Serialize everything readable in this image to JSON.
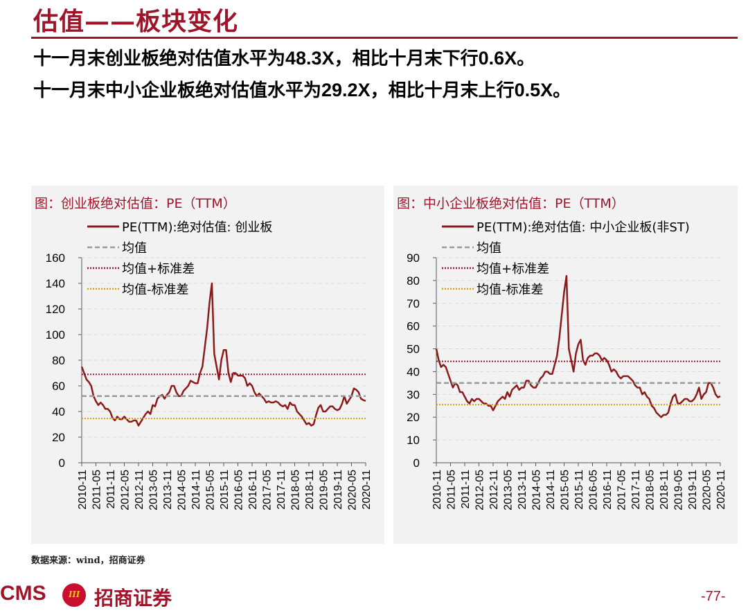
{
  "header": {
    "title": "估值——板块变化",
    "lines": [
      [
        "十一月末创业板绝对估值水平为",
        "48.3X",
        "，相比十月末下行",
        "0.6X",
        "。"
      ],
      [
        "十一月末中小企业板绝对估值水平为",
        "29.2X",
        "，相比十月末上行",
        "0.5X",
        "。"
      ]
    ]
  },
  "chart_data": [
    {
      "type": "line",
      "title": "图：创业板绝对估值：PE（TTM）",
      "x": [
        "2010-11",
        "2010-12",
        "2011-01",
        "2011-02",
        "2011-03",
        "2011-04",
        "2011-05",
        "2011-06",
        "2011-07",
        "2011-08",
        "2011-09",
        "2011-10",
        "2011-11",
        "2011-12",
        "2012-01",
        "2012-02",
        "2012-03",
        "2012-04",
        "2012-05",
        "2012-06",
        "2012-07",
        "2012-08",
        "2012-09",
        "2012-10",
        "2012-11",
        "2012-12",
        "2013-01",
        "2013-02",
        "2013-03",
        "2013-04",
        "2013-05",
        "2013-06",
        "2013-07",
        "2013-08",
        "2013-09",
        "2013-10",
        "2013-11",
        "2013-12",
        "2014-01",
        "2014-02",
        "2014-03",
        "2014-04",
        "2014-05",
        "2014-06",
        "2014-07",
        "2014-08",
        "2014-09",
        "2014-10",
        "2014-11",
        "2014-12",
        "2015-01",
        "2015-02",
        "2015-03",
        "2015-04",
        "2015-05",
        "2015-06",
        "2015-07",
        "2015-08",
        "2015-09",
        "2015-10",
        "2015-11",
        "2015-12",
        "2016-01",
        "2016-02",
        "2016-03",
        "2016-04",
        "2016-05",
        "2016-06",
        "2016-07",
        "2016-08",
        "2016-09",
        "2016-10",
        "2016-11",
        "2016-12",
        "2017-01",
        "2017-02",
        "2017-03",
        "2017-04",
        "2017-05",
        "2017-06",
        "2017-07",
        "2017-08",
        "2017-09",
        "2017-10",
        "2017-11",
        "2017-12",
        "2018-01",
        "2018-02",
        "2018-03",
        "2018-04",
        "2018-05",
        "2018-06",
        "2018-07",
        "2018-08",
        "2018-09",
        "2018-10",
        "2018-11",
        "2018-12",
        "2019-01",
        "2019-02",
        "2019-03",
        "2019-04",
        "2019-05",
        "2019-06",
        "2019-07",
        "2019-08",
        "2019-09",
        "2019-10",
        "2019-11",
        "2019-12",
        "2020-01",
        "2020-02",
        "2020-03",
        "2020-04",
        "2020-05",
        "2020-06",
        "2020-07",
        "2020-08",
        "2020-09",
        "2020-10",
        "2020-11"
      ],
      "series": [
        {
          "name": "PE(TTM):绝对估值: 创业板",
          "color": "#8b1a1a",
          "dash": "solid",
          "values": [
            75,
            70,
            65,
            63,
            60,
            52,
            48,
            45,
            47,
            45,
            42,
            42,
            40,
            35,
            33,
            36,
            34,
            34,
            36,
            34,
            32,
            32,
            33,
            33,
            29,
            32,
            35,
            38,
            40,
            38,
            45,
            44,
            50,
            52,
            53,
            50,
            53,
            55,
            60,
            60,
            55,
            52,
            52,
            56,
            58,
            60,
            64,
            63,
            62,
            62,
            70,
            75,
            90,
            105,
            125,
            140,
            85,
            75,
            65,
            80,
            88,
            88,
            70,
            63,
            70,
            70,
            68,
            68,
            68,
            66,
            60,
            62,
            60,
            55,
            52,
            54,
            52,
            50,
            47,
            48,
            47,
            47,
            48,
            47,
            45,
            44,
            45,
            42,
            47,
            45,
            45,
            40,
            38,
            36,
            33,
            30,
            31,
            29,
            30,
            37,
            43,
            45,
            40,
            40,
            42,
            44,
            44,
            42,
            41,
            42,
            46,
            52,
            46,
            49,
            52,
            58,
            57,
            55,
            50,
            48.9,
            48.3
          ]
        },
        {
          "name": "均值",
          "color": "#999999",
          "dash": "dashed",
          "value": 52
        },
        {
          "name": "均值+标准差",
          "color": "#a0142a",
          "dash": "dotted",
          "value": 69
        },
        {
          "name": "均值-标准差",
          "color": "#d4a017",
          "dash": "dotted",
          "value": 34.5
        }
      ],
      "xticks": [
        "2010-11",
        "2011-05",
        "2011-11",
        "2012-05",
        "2012-11",
        "2013-05",
        "2013-11",
        "2014-05",
        "2014-11",
        "2015-05",
        "2015-11",
        "2016-05",
        "2016-11",
        "2017-05",
        "2017-11",
        "2018-05",
        "2018-11",
        "2019-05",
        "2019-11",
        "2020-05",
        "2020-11"
      ],
      "ylim": [
        0,
        160
      ],
      "yticks": [
        0,
        20,
        40,
        60,
        80,
        100,
        120,
        140,
        160
      ],
      "grid": true
    },
    {
      "type": "line",
      "title": "图：中小企业板绝对估值：PE（TTM）",
      "x": [
        "2010-11",
        "2010-12",
        "2011-01",
        "2011-02",
        "2011-03",
        "2011-04",
        "2011-05",
        "2011-06",
        "2011-07",
        "2011-08",
        "2011-09",
        "2011-10",
        "2011-11",
        "2011-12",
        "2012-01",
        "2012-02",
        "2012-03",
        "2012-04",
        "2012-05",
        "2012-06",
        "2012-07",
        "2012-08",
        "2012-09",
        "2012-10",
        "2012-11",
        "2012-12",
        "2013-01",
        "2013-02",
        "2013-03",
        "2013-04",
        "2013-05",
        "2013-06",
        "2013-07",
        "2013-08",
        "2013-09",
        "2013-10",
        "2013-11",
        "2013-12",
        "2014-01",
        "2014-02",
        "2014-03",
        "2014-04",
        "2014-05",
        "2014-06",
        "2014-07",
        "2014-08",
        "2014-09",
        "2014-10",
        "2014-11",
        "2014-12",
        "2015-01",
        "2015-02",
        "2015-03",
        "2015-04",
        "2015-05",
        "2015-06",
        "2015-07",
        "2015-08",
        "2015-09",
        "2015-10",
        "2015-11",
        "2015-12",
        "2016-01",
        "2016-02",
        "2016-03",
        "2016-04",
        "2016-05",
        "2016-06",
        "2016-07",
        "2016-08",
        "2016-09",
        "2016-10",
        "2016-11",
        "2016-12",
        "2017-01",
        "2017-02",
        "2017-03",
        "2017-04",
        "2017-05",
        "2017-06",
        "2017-07",
        "2017-08",
        "2017-09",
        "2017-10",
        "2017-11",
        "2017-12",
        "2018-01",
        "2018-02",
        "2018-03",
        "2018-04",
        "2018-05",
        "2018-06",
        "2018-07",
        "2018-08",
        "2018-09",
        "2018-10",
        "2018-11",
        "2018-12",
        "2019-01",
        "2019-02",
        "2019-03",
        "2019-04",
        "2019-05",
        "2019-06",
        "2019-07",
        "2019-08",
        "2019-09",
        "2019-10",
        "2019-11",
        "2019-12",
        "2020-01",
        "2020-02",
        "2020-03",
        "2020-04",
        "2020-05",
        "2020-06",
        "2020-07",
        "2020-08",
        "2020-09",
        "2020-10",
        "2020-11"
      ],
      "series": [
        {
          "name": "PE(TTM):绝对估值: 中小企业板(非ST)",
          "color": "#8b1a1a",
          "dash": "solid",
          "values": [
            50,
            45,
            42,
            43,
            42,
            39,
            36,
            33,
            35,
            34,
            31,
            31,
            29,
            27,
            26,
            28,
            27,
            28,
            28,
            27,
            26,
            26,
            25,
            25,
            23,
            25,
            27,
            28,
            29,
            28,
            31,
            29,
            32,
            33,
            34,
            32,
            33,
            33,
            36,
            36,
            34,
            33,
            33,
            35,
            37,
            38,
            40,
            40,
            39,
            39,
            43,
            47,
            55,
            65,
            75,
            82,
            50,
            45,
            40,
            48,
            52,
            54,
            45,
            43,
            46,
            47,
            47,
            48,
            48,
            47,
            45,
            46,
            45,
            43,
            40,
            41,
            40,
            38,
            37,
            38,
            38,
            38,
            37,
            36,
            34,
            33,
            33,
            30,
            31,
            29,
            28,
            25,
            24,
            22,
            21,
            20,
            21,
            21,
            22,
            26,
            29,
            30,
            26,
            26,
            27,
            28,
            28,
            27,
            27,
            28,
            30,
            33,
            28,
            30,
            31,
            35,
            35,
            33,
            30,
            28.7,
            29.2
          ]
        },
        {
          "name": "均值",
          "color": "#999999",
          "dash": "dashed",
          "value": 35
        },
        {
          "name": "均值+标准差",
          "color": "#a0142a",
          "dash": "dotted",
          "value": 44.5
        },
        {
          "name": "均值-标准差",
          "color": "#d4a017",
          "dash": "dotted",
          "value": 25.5
        }
      ],
      "xticks": [
        "2010-11",
        "2011-05",
        "2011-11",
        "2012-05",
        "2012-11",
        "2013-05",
        "2013-11",
        "2014-05",
        "2014-11",
        "2015-05",
        "2015-11",
        "2016-05",
        "2016-11",
        "2017-05",
        "2017-11",
        "2018-05",
        "2018-11",
        "2019-05",
        "2019-11",
        "2020-05",
        "2020-11"
      ],
      "ylim": [
        0,
        90
      ],
      "yticks": [
        0,
        10,
        20,
        30,
        40,
        50,
        60,
        70,
        80,
        90
      ],
      "grid": true
    }
  ],
  "footer": {
    "source": "数据来源：wind，招商证券",
    "logo_text": "CMS",
    "logo_mark": "III",
    "brand": "招商证券",
    "page": "-77-"
  }
}
